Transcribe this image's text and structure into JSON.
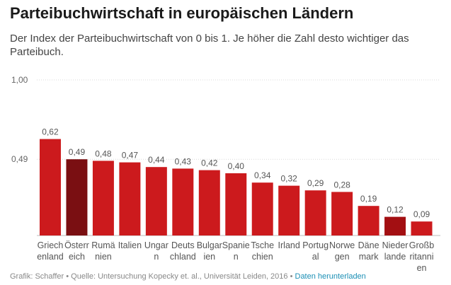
{
  "header": {
    "title": "Parteibuchwirtschaft in europäischen Ländern",
    "subtitle": "Der Index der Parteibuchwirtschaft von 0 bis 1. Je höher die Zahl desto wichtiger das Parteibuch."
  },
  "footer": {
    "credit": "Grafik: Schaffer • Quelle: Untersuchung Kopecky et. al., Universität Leiden, 2016 • ",
    "download_link": "Daten herunterladen"
  },
  "colors": {
    "bar": "#cc1a1d",
    "highlight": "#7a0f12",
    "highlight2": "#a30f12"
  },
  "chart_data": {
    "type": "bar",
    "title": "Parteibuchwirtschaft in europäischen Ländern",
    "ylim": [
      0,
      1
    ],
    "yticks": [
      {
        "value": 1.0,
        "label": "1,00"
      },
      {
        "value": 0.49,
        "label": "0,49"
      }
    ],
    "categories": [
      [
        "Griech",
        "enland"
      ],
      [
        "Österr",
        "eich"
      ],
      [
        "Rumä",
        "nien"
      ],
      [
        "Italien"
      ],
      [
        "Ungar",
        "n"
      ],
      [
        "Deuts",
        "chland"
      ],
      [
        "Bulgar",
        "ien"
      ],
      [
        "Spanie",
        "n"
      ],
      [
        "Tsche",
        "chien"
      ],
      [
        "Irland"
      ],
      [
        "Portug",
        "al"
      ],
      [
        "Norwe",
        "gen"
      ],
      [
        "Däne",
        "mark"
      ],
      [
        "Nieder",
        "lande"
      ],
      [
        "Großb",
        "ritanni",
        "en"
      ]
    ],
    "values": [
      0.62,
      0.49,
      0.48,
      0.47,
      0.44,
      0.43,
      0.42,
      0.4,
      0.34,
      0.32,
      0.29,
      0.28,
      0.19,
      0.12,
      0.09
    ],
    "labels": [
      "0,62",
      "0,49",
      "0,48",
      "0,47",
      "0,44",
      "0,43",
      "0,42",
      "0,40",
      "0,34",
      "0,32",
      "0,29",
      "0,28",
      "0,19",
      "0,12",
      "0,09"
    ],
    "highlight": [
      1,
      13
    ]
  }
}
